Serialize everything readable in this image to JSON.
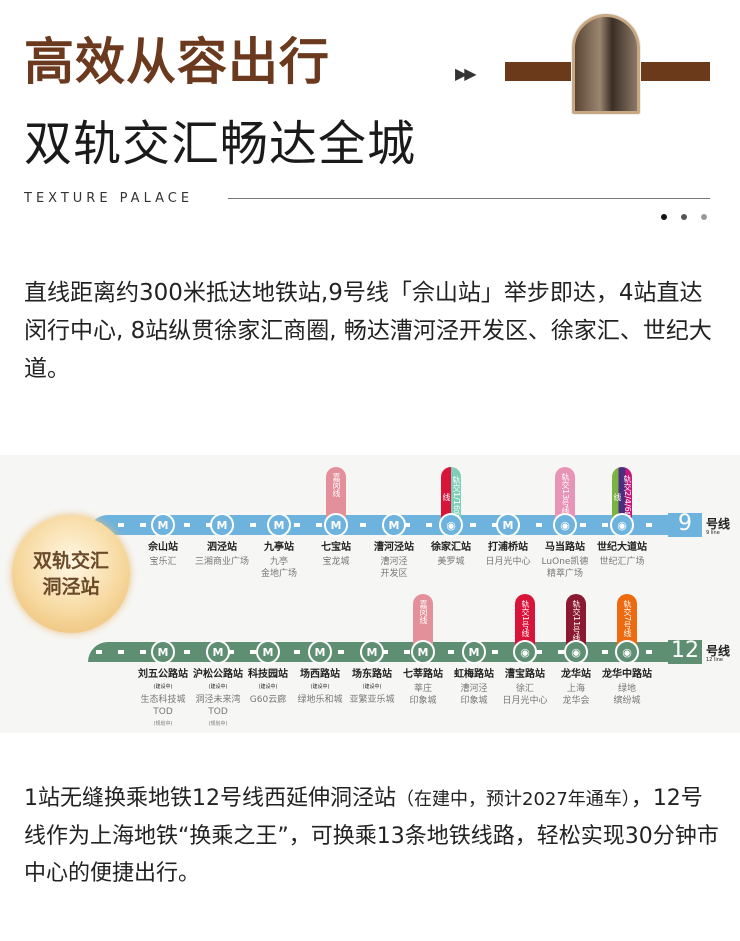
{
  "header": {
    "title": "高效从容出行",
    "subtitle": "双轨交汇畅达全城",
    "brand": "TEXTURE  PALACE",
    "arrows": "▶▶"
  },
  "intro": "直线距离约300米抵达地铁站,9号线「佘山站」举步即达，4站直达闵行中心, 8站纵贯徐家汇商圈, 畅达漕河泾开发区、徐家汇、世纪大道。",
  "map": {
    "badge": [
      "双轨交汇",
      "洞泾站"
    ],
    "line9": {
      "number": "9",
      "label": "号线",
      "sub": "9 line",
      "color": "#6db3dd",
      "stations": [
        {
          "name": "佘山站",
          "sub": "宝乐汇"
        },
        {
          "name": "泗泾站",
          "sub": "三湘商业广场"
        },
        {
          "name": "九亭站",
          "sub": "九亭\n金地广场"
        },
        {
          "name": "七宝站",
          "sub": "宝龙城",
          "transfer": "嘉闵线",
          "colors": [
            "#e3909a"
          ]
        },
        {
          "name": "漕河泾站",
          "sub": "漕河泾\n开发区"
        },
        {
          "name": "徐家汇站",
          "sub": "美罗城",
          "transfer": "轨交1/16号线",
          "colors": [
            "#d9143a",
            "#7fcfb8"
          ],
          "interchange": true
        },
        {
          "name": "打浦桥站",
          "sub": "日月光中心"
        },
        {
          "name": "马当路站",
          "sub": "LuOne凯德\n精萃广场",
          "transfer": "轨交13号线",
          "colors": [
            "#e894b6"
          ],
          "interchange": true
        },
        {
          "name": "世纪大道站",
          "sub": "世纪汇广场",
          "transfer": "轨交2/4/6号线",
          "colors": [
            "#7bb342",
            "#4b2d7f",
            "#c8177a"
          ],
          "interchange": true
        }
      ]
    },
    "line12": {
      "number": "12",
      "label": "号线",
      "sub": "12 line",
      "color": "#5f8f72",
      "stations": [
        {
          "name": "刘五公路站",
          "note": "(建设中)",
          "sub": "生态科技城\nTOD",
          "subnote": "(规划中)"
        },
        {
          "name": "沪松公路站",
          "note": "(建设中)",
          "sub": "洞泾未来湾\nTOD",
          "subnote": "(规划中)"
        },
        {
          "name": "科技园站",
          "note": "(建设中)",
          "sub": "G60云廊"
        },
        {
          "name": "场西路站",
          "note": "(建设中)",
          "sub": "绿地乐和城"
        },
        {
          "name": "场东路站",
          "note": "(建设中)",
          "sub": "亚繁亚乐城"
        },
        {
          "name": "七莘路站",
          "sub": "莘庄\n印象城",
          "transfer": "嘉闵线",
          "colors": [
            "#e3909a"
          ]
        },
        {
          "name": "虹梅路站",
          "sub": "漕河泾\n印象城"
        },
        {
          "name": "漕宝路站",
          "sub": "徐汇\n日月光中心",
          "transfer": "轨交1号线",
          "colors": [
            "#d9143a"
          ],
          "interchange": true
        },
        {
          "name": "龙华站",
          "sub": "上海\n龙华会",
          "transfer": "轨交11号线",
          "colors": [
            "#8b1a30"
          ],
          "interchange": true
        },
        {
          "name": "龙华中路站",
          "sub": "绿地\n缤纷城",
          "transfer": "轨交7号线",
          "colors": [
            "#ee6a10"
          ],
          "interchange": true
        }
      ]
    }
  },
  "outro": {
    "main1": "1站无缝换乘地铁12号线西延伸洞泾站",
    "note": "（在建中，预计2027年通车）",
    "main2": "，12号线作为上海地铁“换乘之王”，可换乘13条地铁线路，轻松实现30分钟市中心的便捷出行。"
  }
}
